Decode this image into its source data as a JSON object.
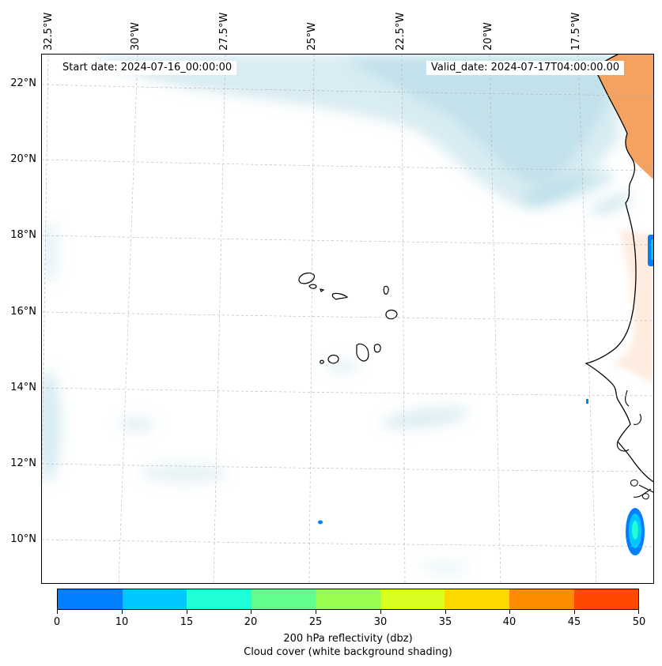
{
  "map": {
    "start_date": "Start date: 2024-07-16_00:00:00",
    "valid_date": "Valid_date: 2024-07-17T04:00:00.00",
    "lat_labels": [
      "22°N",
      "20°N",
      "18°N",
      "16°N",
      "14°N",
      "12°N",
      "10°N"
    ],
    "lon_labels": [
      "32.5°W",
      "30°W",
      "27.5°W",
      "25°W",
      "22.5°W",
      "20°W",
      "17.5°W"
    ],
    "land_color": "#f4a261",
    "cloud_color": "#a8d5e2",
    "coast_color": "#000000"
  },
  "colorbar": {
    "colors": [
      "#0080ff",
      "#00c8ff",
      "#20ffd8",
      "#60ff90",
      "#98ff50",
      "#d8ff20",
      "#ffd800",
      "#ff8c00",
      "#ff4800"
    ],
    "ticks": [
      "0",
      "10",
      "15",
      "20",
      "25",
      "30",
      "35",
      "40",
      "45",
      "50"
    ],
    "label": "200 hPa reflectivity (dbz)",
    "sublabel": "Cloud cover (white background shading)"
  }
}
